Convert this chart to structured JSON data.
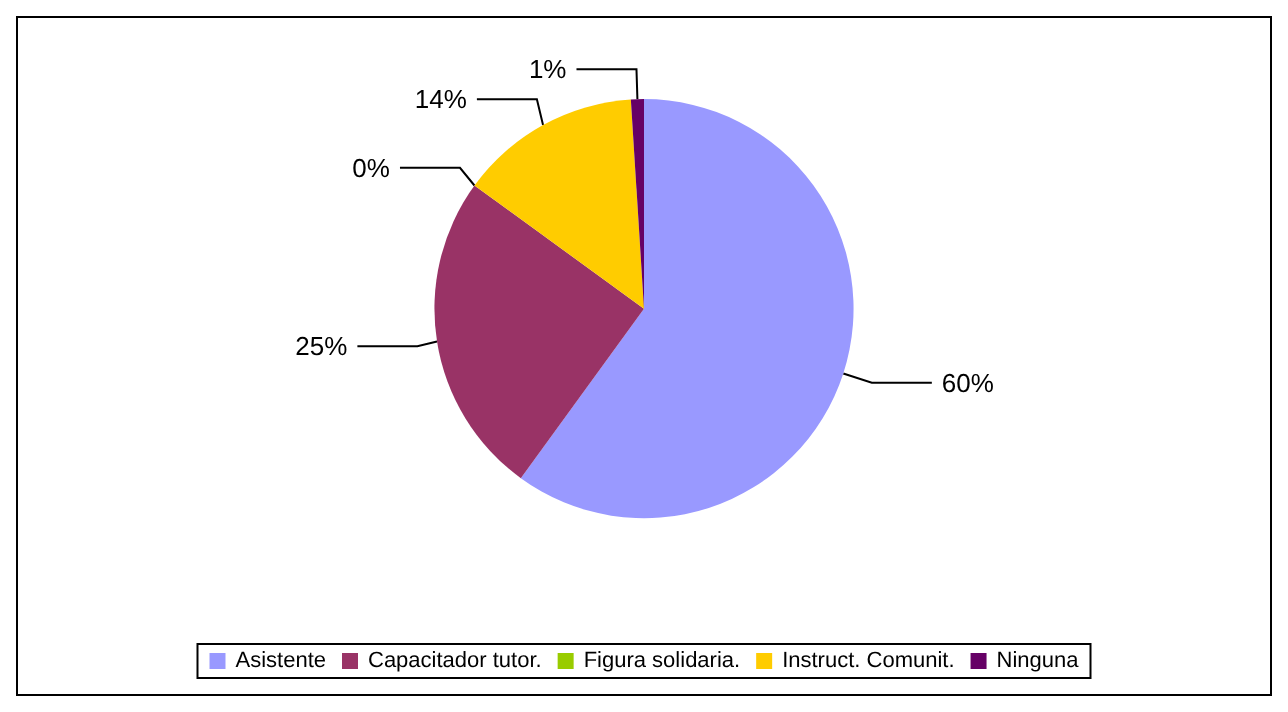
{
  "chart_data": {
    "type": "pie",
    "categories": [
      "Asistente",
      "Capacitador tutor.",
      "Figura solidaria.",
      "Instruct. Comunit.",
      "Ninguna"
    ],
    "values": [
      60,
      25,
      0,
      14,
      1
    ],
    "value_labels": [
      "60%",
      "25%",
      "0%",
      "14%",
      "1%"
    ],
    "colors": [
      "#9999ff",
      "#993366",
      "#99cc00",
      "#ffcc00",
      "#660066"
    ],
    "legend": "bottom"
  }
}
